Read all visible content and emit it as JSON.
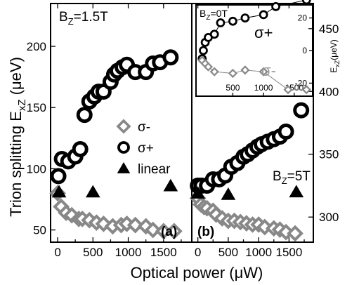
{
  "chart_data": [
    {
      "panel": "a",
      "type": "scatter",
      "panel_label": "(a)",
      "field_label": "B",
      "field_sub": "Z",
      "field_value": "=1.5T",
      "xlabel": "Optical power (μW)",
      "ylabel_main": "Trion splitting E",
      "ylabel_sub": "xZ",
      "ylabel_unit": " (μeV)",
      "xlim": [
        -100,
        1900
      ],
      "ylim": [
        40,
        235
      ],
      "xticks": [
        0,
        500,
        1000,
        1500
      ],
      "yticks": [
        50,
        100,
        150,
        200
      ],
      "legend": [
        {
          "key": "sigma_minus",
          "label": "σ-"
        },
        {
          "key": "sigma_plus",
          "label": "σ+"
        },
        {
          "key": "linear",
          "label": "linear"
        }
      ],
      "series": [
        {
          "key": "sigma_plus",
          "marker": "circle",
          "color": "#000000",
          "points": [
            [
              10,
              94
            ],
            [
              60,
              108
            ],
            [
              150,
              106
            ],
            [
              250,
              110
            ],
            [
              320,
              116
            ],
            [
              380,
              144
            ],
            [
              450,
              155
            ],
            [
              520,
              159
            ],
            [
              580,
              163
            ],
            [
              650,
              163
            ],
            [
              750,
              171
            ],
            [
              800,
              177
            ],
            [
              850,
              180
            ],
            [
              920,
              183
            ],
            [
              980,
              185
            ],
            [
              1100,
              179
            ],
            [
              1250,
              179
            ],
            [
              1350,
              186
            ],
            [
              1450,
              187
            ],
            [
              1600,
              191
            ]
          ]
        },
        {
          "key": "sigma_minus",
          "marker": "diamond",
          "color": "#888888",
          "points": [
            [
              0,
              80
            ],
            [
              50,
              69
            ],
            [
              120,
              64
            ],
            [
              200,
              62
            ],
            [
              300,
              59
            ],
            [
              350,
              59
            ],
            [
              450,
              58
            ],
            [
              550,
              56
            ],
            [
              650,
              55
            ],
            [
              780,
              53
            ],
            [
              900,
              54
            ],
            [
              980,
              55
            ],
            [
              1100,
              54
            ],
            [
              1250,
              53
            ],
            [
              1350,
              50
            ],
            [
              1500,
              49
            ],
            [
              1650,
              49
            ]
          ]
        },
        {
          "key": "linear",
          "marker": "triangle",
          "color": "#000000",
          "points": [
            [
              20,
              81
            ],
            [
              500,
              81
            ],
            [
              1600,
              86
            ]
          ]
        }
      ]
    },
    {
      "panel": "b",
      "type": "scatter",
      "panel_label": "(b)",
      "field_label": "B",
      "field_sub": "Z",
      "field_value": "=5T",
      "xlim": [
        -100,
        1900
      ],
      "ylim": [
        280,
        470
      ],
      "xticks": [
        0,
        500,
        1000,
        1500
      ],
      "yticks": [
        300,
        350,
        400,
        450
      ],
      "series": [
        {
          "key": "sigma_plus",
          "marker": "circle",
          "color": "#000000",
          "points": [
            [
              0,
              325
            ],
            [
              60,
              325
            ],
            [
              150,
              325
            ],
            [
              250,
              330
            ],
            [
              350,
              330
            ],
            [
              450,
              333
            ],
            [
              550,
              340
            ],
            [
              650,
              343
            ],
            [
              750,
              348
            ],
            [
              820,
              350
            ],
            [
              900,
              353
            ],
            [
              980,
              356
            ],
            [
              1050,
              358
            ],
            [
              1150,
              360
            ],
            [
              1250,
              362
            ],
            [
              1350,
              364
            ],
            [
              1450,
              368
            ],
            [
              1700,
              385
            ]
          ]
        },
        {
          "key": "sigma_minus",
          "marker": "diamond",
          "color": "#888888",
          "points": [
            [
              0,
              315
            ],
            [
              50,
              310
            ],
            [
              100,
              308
            ],
            [
              150,
              307
            ],
            [
              250,
              305
            ],
            [
              300,
              302
            ],
            [
              400,
              299
            ],
            [
              500,
              297
            ],
            [
              600,
              297
            ],
            [
              700,
              296
            ],
            [
              800,
              295
            ],
            [
              900,
              294
            ],
            [
              1000,
              294
            ],
            [
              1100,
              292
            ],
            [
              1250,
              291
            ],
            [
              1350,
              290
            ],
            [
              1450,
              288
            ],
            [
              1600,
              287
            ]
          ]
        },
        {
          "key": "linear",
          "marker": "triangle",
          "color": "#000000",
          "points": [
            [
              0,
              319
            ],
            [
              500,
              318
            ],
            [
              1620,
              320
            ]
          ]
        }
      ]
    },
    {
      "panel": "inset",
      "type": "line",
      "field_label": "B",
      "field_sub": "Z",
      "field_value": "=0T",
      "ylabel_main": "E",
      "ylabel_sub": "xZ",
      "ylabel_unit": "(μeV)",
      "xlim": [
        -100,
        1800
      ],
      "ylim": [
        -28,
        28
      ],
      "xticks": [
        500,
        1000,
        1500
      ],
      "yticks": [
        -20,
        0,
        20
      ],
      "series": [
        {
          "key": "sigma_plus",
          "label": "σ+",
          "marker": "circle",
          "color": "#000000",
          "points": [
            [
              0,
              -5
            ],
            [
              20,
              0
            ],
            [
              50,
              5
            ],
            [
              100,
              8
            ],
            [
              200,
              10
            ],
            [
              300,
              17
            ],
            [
              500,
              18
            ],
            [
              700,
              20
            ],
            [
              1000,
              22
            ],
            [
              1200,
              27
            ],
            [
              1700,
              31
            ]
          ]
        },
        {
          "key": "sigma_minus",
          "label": "σ-",
          "marker": "diamond",
          "color": "#888888",
          "points": [
            [
              0,
              -6
            ],
            [
              50,
              -8
            ],
            [
              100,
              -10
            ],
            [
              200,
              -13
            ],
            [
              500,
              -14
            ],
            [
              700,
              -12
            ],
            [
              1000,
              -13
            ],
            [
              1400,
              -24
            ],
            [
              1700,
              -24
            ]
          ]
        }
      ]
    }
  ]
}
